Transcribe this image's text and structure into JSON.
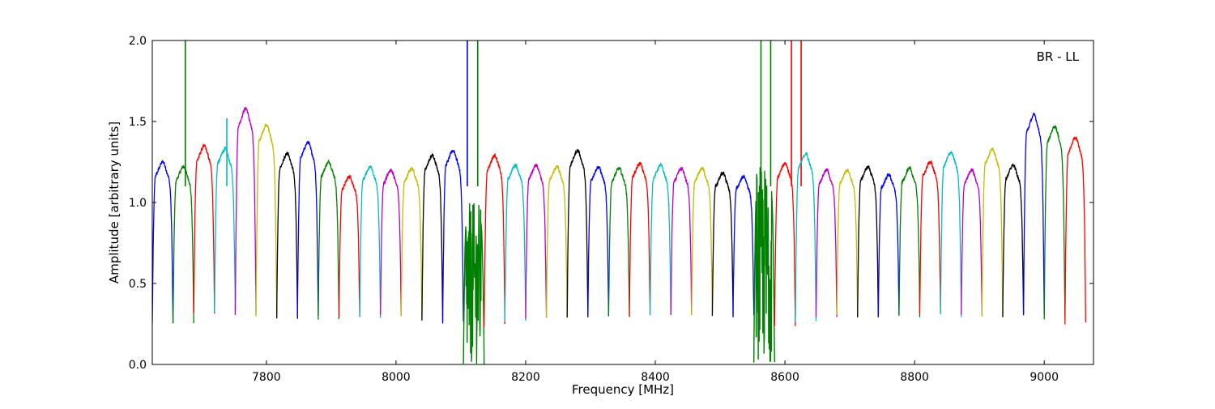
{
  "chart_data": {
    "type": "line",
    "annotation": "BR - LL",
    "xlabel": "Frequency [MHz]",
    "ylabel": "Amplitude [arbitrary units]",
    "xlim": [
      7624,
      9076
    ],
    "ylim": [
      0.0,
      2.0
    ],
    "xticks": [
      7800,
      8000,
      8200,
      8400,
      8600,
      8800,
      9000
    ],
    "yticks": [
      0.0,
      0.5,
      1.0,
      1.5,
      2.0
    ],
    "ytick_labels": [
      "0.0",
      "0.5",
      "1.0",
      "1.5",
      "2.0"
    ],
    "grid": false,
    "legend": "none",
    "channel_width_mhz": 32,
    "color_cycle": [
      "#0000ff",
      "#008000",
      "#ff0000",
      "#00bfbf",
      "#bf00bf",
      "#bfbf00",
      "#000000"
    ],
    "series": [
      {
        "start": 7624,
        "peak": 1.25,
        "min": 0.25
      },
      {
        "start": 7656,
        "peak": 1.22,
        "min": 0.25,
        "spikes": [
          {
            "x": 7675,
            "y": 2.0
          }
        ]
      },
      {
        "start": 7688,
        "peak": 1.35,
        "min": 0.32
      },
      {
        "start": 7720,
        "peak": 1.33,
        "min": 0.33,
        "spikes": [
          {
            "x": 7739,
            "y": 1.52
          }
        ]
      },
      {
        "start": 7752,
        "peak": 1.58,
        "min": 0.31
      },
      {
        "start": 7784,
        "peak": 1.48,
        "min": 0.3
      },
      {
        "start": 7816,
        "peak": 1.3,
        "min": 0.29
      },
      {
        "start": 7848,
        "peak": 1.37,
        "min": 0.3
      },
      {
        "start": 7880,
        "peak": 1.25,
        "min": 0.28
      },
      {
        "start": 7912,
        "peak": 1.16,
        "min": 0.3
      },
      {
        "start": 7944,
        "peak": 1.22,
        "min": 0.29
      },
      {
        "start": 7976,
        "peak": 1.2,
        "min": 0.3
      },
      {
        "start": 8008,
        "peak": 1.21,
        "min": 0.3
      },
      {
        "start": 8040,
        "peak": 1.29,
        "min": 0.27
      },
      {
        "start": 8072,
        "peak": 1.32,
        "min": 0.26,
        "spikes": [
          {
            "x": 8110,
            "y": 2.0
          }
        ]
      },
      {
        "start": 8104,
        "peak": 1.0,
        "min": 0.0,
        "noisy": true,
        "spikes": [
          {
            "x": 8126,
            "y": 2.0
          }
        ]
      },
      {
        "start": 8136,
        "peak": 1.29,
        "min": 0.24
      },
      {
        "start": 8168,
        "peak": 1.23,
        "min": 0.26
      },
      {
        "start": 8200,
        "peak": 1.23,
        "min": 0.28
      },
      {
        "start": 8232,
        "peak": 1.22,
        "min": 0.29
      },
      {
        "start": 8264,
        "peak": 1.32,
        "min": 0.29
      },
      {
        "start": 8296,
        "peak": 1.22,
        "min": 0.3
      },
      {
        "start": 8328,
        "peak": 1.21,
        "min": 0.3
      },
      {
        "start": 8360,
        "peak": 1.24,
        "min": 0.3
      },
      {
        "start": 8392,
        "peak": 1.23,
        "min": 0.3
      },
      {
        "start": 8424,
        "peak": 1.21,
        "min": 0.3
      },
      {
        "start": 8456,
        "peak": 1.21,
        "min": 0.31
      },
      {
        "start": 8488,
        "peak": 1.18,
        "min": 0.3
      },
      {
        "start": 8520,
        "peak": 1.16,
        "min": 0.3
      },
      {
        "start": 8552,
        "peak": 1.23,
        "min": 0.01,
        "noisy": true,
        "spikes": [
          {
            "x": 8563,
            "y": 2.0
          },
          {
            "x": 8578,
            "y": 2.0
          }
        ]
      },
      {
        "start": 8584,
        "peak": 1.24,
        "min": 0.24,
        "spikes": [
          {
            "x": 8610,
            "y": 2.0
          },
          {
            "x": 8625,
            "y": 2.0
          }
        ]
      },
      {
        "start": 8616,
        "peak": 1.3,
        "min": 0.26
      },
      {
        "start": 8648,
        "peak": 1.2,
        "min": 0.3
      },
      {
        "start": 8680,
        "peak": 1.2,
        "min": 0.3
      },
      {
        "start": 8712,
        "peak": 1.22,
        "min": 0.3
      },
      {
        "start": 8744,
        "peak": 1.17,
        "min": 0.3
      },
      {
        "start": 8776,
        "peak": 1.21,
        "min": 0.3
      },
      {
        "start": 8808,
        "peak": 1.25,
        "min": 0.31
      },
      {
        "start": 8840,
        "peak": 1.31,
        "min": 0.3
      },
      {
        "start": 8872,
        "peak": 1.2,
        "min": 0.3
      },
      {
        "start": 8904,
        "peak": 1.33,
        "min": 0.3
      },
      {
        "start": 8936,
        "peak": 1.23,
        "min": 0.3
      },
      {
        "start": 8968,
        "peak": 1.54,
        "min": 0.3
      },
      {
        "start": 9000,
        "peak": 1.47,
        "min": 0.27
      },
      {
        "start": 9032,
        "peak": 1.4,
        "min": 0.25
      }
    ]
  }
}
